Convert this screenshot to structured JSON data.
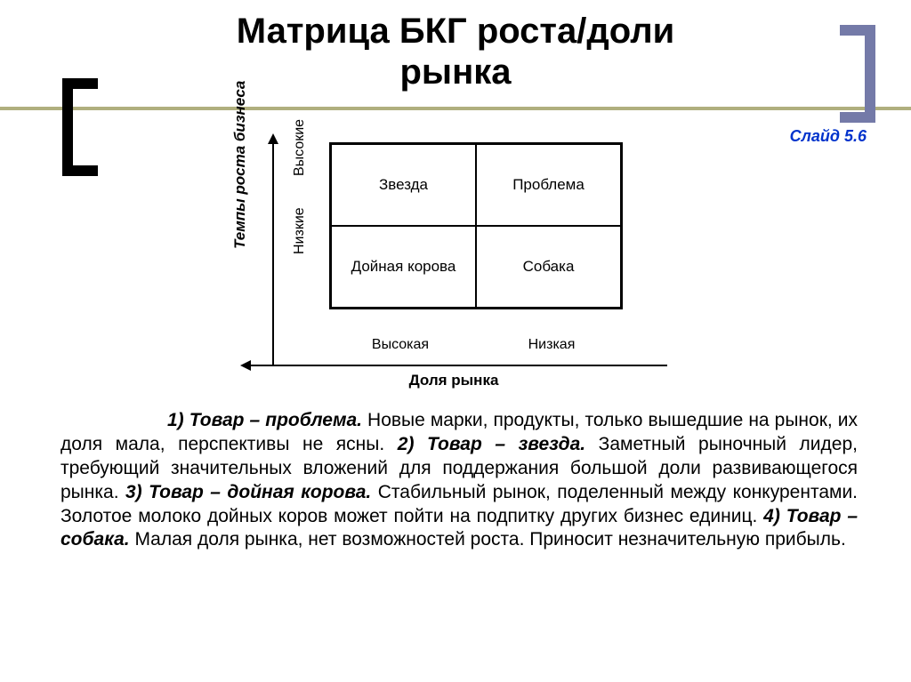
{
  "title_line1": "Матрица БКГ роста/доли",
  "title_line2": "рынка",
  "slide_label": "Слайд 5.6",
  "colors": {
    "divider": "#b0af7e",
    "bracket_right": "#747aa8",
    "slide_label": "#0033cc",
    "text": "#000000",
    "background": "#ffffff",
    "line": "#000000"
  },
  "diagram": {
    "type": "quadrant-matrix",
    "y_axis_label": "Темпы роста бизнеса",
    "x_axis_label": "Доля рынка",
    "y_high_label": "Высокие",
    "y_low_label": "Низкие",
    "x_high_label": "Высокая",
    "x_low_label": "Низкая",
    "cells": {
      "top_left": "Звезда",
      "top_right": "Проблема",
      "bottom_left": "Дойная корова",
      "bottom_right": "Собака"
    },
    "cell_font_size": 17,
    "axis_label_font_size": 17,
    "sublabel_font_size": 16,
    "border_width": 2
  },
  "descriptions": {
    "d1_label": "1) Товар – проблема.",
    "d1_text": " Новые марки, продукты, только вышедшие на рынок, их доля мала, перспективы не ясны. ",
    "d2_label": "2) Товар – звезда.",
    "d2_text": " Заметный рыночный лидер, требующий значительных вложений для поддержания большой доли развивающегося рынка. ",
    "d3_label": "3) Товар – дойная корова.",
    "d3_text": " Стабильный рынок, поделенный между конкурентами. Золотое молоко дойных коров может пойти на подпитку других бизнес единиц. ",
    "d4_label": "4) Товар – собака.",
    "d4_text": " Малая доля рынка, нет возможностей роста. Приносит незначительную прибыль."
  },
  "typography": {
    "title_size": 40,
    "body_size": 21,
    "font_family": "Arial"
  }
}
